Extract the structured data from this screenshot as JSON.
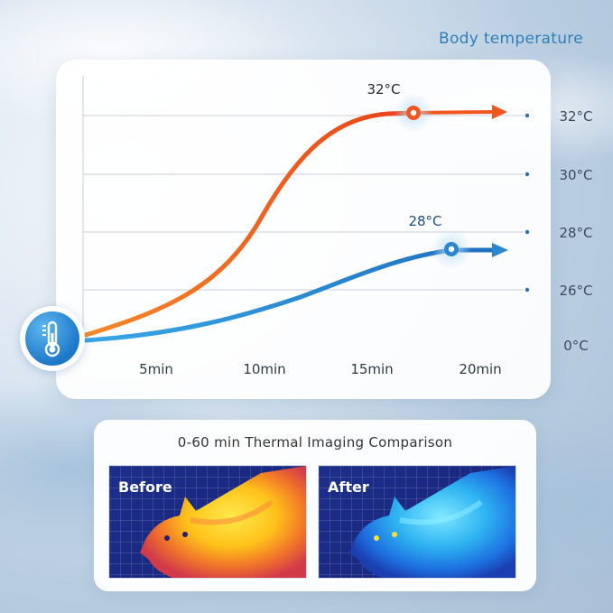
{
  "chart_data": {
    "type": "line",
    "title": "Body temperature",
    "x": [
      "5min",
      "10min",
      "15min",
      "20min"
    ],
    "y_tick_labels": [
      "0°C",
      "26°C",
      "28°C",
      "30°C",
      "32°C"
    ],
    "series": [
      {
        "color": "#f0561e",
        "end_label": "32°C",
        "points": [
          [
            0,
            0
          ],
          [
            5,
            26.6
          ],
          [
            10,
            28.5
          ],
          [
            13,
            31.5
          ],
          [
            15,
            32
          ],
          [
            20,
            32
          ]
        ]
      },
      {
        "color": "#2a86cf",
        "end_label": "28°C",
        "points": [
          [
            0,
            0
          ],
          [
            5,
            26.1
          ],
          [
            10,
            26.6
          ],
          [
            15,
            27.6
          ],
          [
            18,
            28
          ],
          [
            20,
            28
          ]
        ]
      }
    ],
    "grid": true,
    "legend": "none"
  },
  "icons": {
    "badge": "thermometer-icon"
  },
  "thermal": {
    "title": "0-60 min Thermal Imaging Comparison",
    "before_label": "Before",
    "after_label": "After"
  }
}
